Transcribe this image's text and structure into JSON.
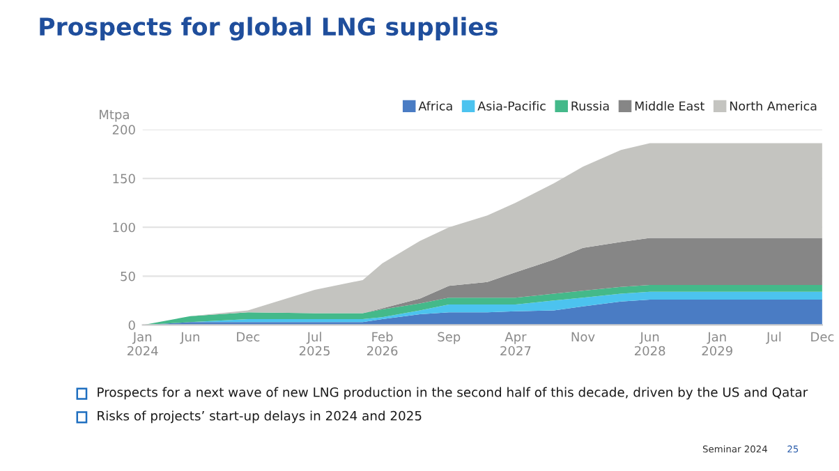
{
  "chart_data": {
    "type": "area",
    "stacked": true,
    "title": "Prospects for global LNG supplies",
    "ylabel": "Mtpa",
    "x": [
      "2024-01",
      "2024-06",
      "2024-12",
      "2025-07",
      "2025-12",
      "2026-02",
      "2026-06",
      "2026-09",
      "2027-01",
      "2027-04",
      "2027-08",
      "2027-11",
      "2028-03",
      "2028-06",
      "2029-01",
      "2029-07",
      "2029-12"
    ],
    "series": [
      {
        "name": "Africa",
        "color": "#4a7cc4",
        "values": [
          0,
          3,
          3,
          3,
          3,
          6,
          11,
          13,
          13,
          14,
          15,
          19,
          24,
          26,
          26,
          26,
          26
        ]
      },
      {
        "name": "Asia-Pacific",
        "color": "#4cc3ef",
        "values": [
          0,
          0,
          3,
          3,
          3,
          2,
          4,
          8,
          8,
          7,
          10,
          9,
          8,
          8,
          8,
          8,
          8
        ]
      },
      {
        "name": "Russia",
        "color": "#44b98a",
        "values": [
          0,
          6,
          7,
          6,
          6,
          8,
          7,
          7,
          7,
          7,
          7,
          7,
          7,
          7,
          7,
          7,
          7
        ]
      },
      {
        "name": "Middle East",
        "color": "#868686",
        "values": [
          0,
          0,
          0,
          0,
          0,
          1,
          5,
          12,
          16,
          26,
          35,
          44,
          46,
          48,
          48,
          48,
          48
        ]
      },
      {
        "name": "North America",
        "color": "#c4c4c0",
        "values": [
          0,
          0,
          2,
          24,
          34,
          46,
          59,
          60,
          68,
          71,
          78,
          83,
          94,
          97,
          97,
          97,
          97
        ]
      }
    ],
    "xlim": [
      "2024-01",
      "2029-12"
    ],
    "xticks": [
      {
        "value": "2024-01",
        "label": "Jan\n2024"
      },
      {
        "value": "2024-06",
        "label": "Jun"
      },
      {
        "value": "2024-12",
        "label": "Dec"
      },
      {
        "value": "2025-07",
        "label": "Jul\n2025"
      },
      {
        "value": "2026-02",
        "label": "Feb\n2026"
      },
      {
        "value": "2026-09",
        "label": "Sep"
      },
      {
        "value": "2027-04",
        "label": "Apr\n2027"
      },
      {
        "value": "2027-11",
        "label": "Nov"
      },
      {
        "value": "2028-06",
        "label": "Jun\n2028"
      },
      {
        "value": "2029-01",
        "label": "Jan\n2029"
      },
      {
        "value": "2029-07",
        "label": "Jul"
      },
      {
        "value": "2029-12",
        "label": "Dec"
      }
    ],
    "ylim": [
      0,
      200
    ],
    "yticks": [
      0,
      50,
      100,
      150,
      200
    ],
    "grid": "y",
    "legend": "top right",
    "annotations": [
      "Prospects for a next wave of new LNG production in the second half of this decade, driven by the US and Qatar",
      "Risks of projects’ start-up delays in 2024 and 2025",
      "Seminar 2024",
      "25"
    ]
  }
}
